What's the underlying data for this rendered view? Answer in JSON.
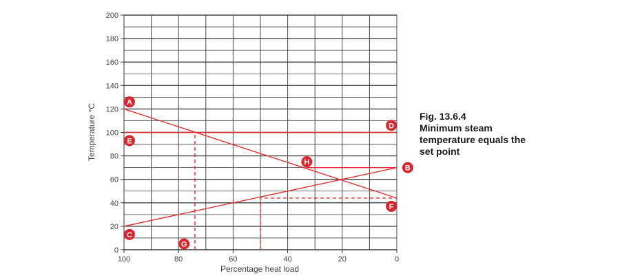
{
  "chart_data": {
    "type": "line",
    "title": "",
    "xlabel": "Percentage heat load",
    "ylabel": "Temperature °C",
    "x_reversed": true,
    "xlim": [
      100,
      0
    ],
    "ylim": [
      0,
      200
    ],
    "x_ticks": [
      100,
      80,
      60,
      40,
      20,
      0
    ],
    "y_ticks": [
      0,
      20,
      40,
      60,
      80,
      100,
      120,
      140,
      160,
      180,
      200
    ],
    "grid": true,
    "colors": {
      "series": "#e03030",
      "grid": "#444444",
      "axis": "#333333",
      "marker": "#d7262e",
      "text": "#444444"
    },
    "series": [
      {
        "key": "AF",
        "style": "solid",
        "points": [
          [
            100,
            120
          ],
          [
            0,
            44
          ]
        ]
      },
      {
        "key": "CB",
        "style": "solid",
        "points": [
          [
            100,
            20
          ],
          [
            0,
            70
          ]
        ]
      },
      {
        "key": "ED",
        "style": "solid",
        "points": [
          [
            100,
            100
          ],
          [
            0,
            100
          ]
        ]
      },
      {
        "key": "HB",
        "style": "solid",
        "points": [
          [
            33,
            70
          ],
          [
            0,
            70
          ]
        ]
      },
      {
        "key": "G-vertical",
        "style": "dashed",
        "points": [
          [
            74,
            0
          ],
          [
            74,
            100
          ]
        ]
      },
      {
        "key": "F-dashed",
        "style": "dashed",
        "points": [
          [
            50,
            0
          ],
          [
            50,
            44
          ],
          [
            0,
            44
          ]
        ]
      }
    ],
    "markers": [
      {
        "label": "A",
        "x": 98,
        "y": 126
      },
      {
        "label": "D",
        "x": 2,
        "y": 106
      },
      {
        "label": "E",
        "x": 98,
        "y": 93
      },
      {
        "label": "H",
        "x": 33,
        "y": 75
      },
      {
        "label": "B",
        "x": -4,
        "y": 70
      },
      {
        "label": "F",
        "x": 2,
        "y": 37
      },
      {
        "label": "C",
        "x": 98,
        "y": 13
      },
      {
        "label": "G",
        "x": 78,
        "y": 5
      }
    ]
  },
  "caption": {
    "lines": [
      "Fig. 13.6.4",
      "Minimum steam",
      "temperature equals the",
      "set point"
    ]
  }
}
